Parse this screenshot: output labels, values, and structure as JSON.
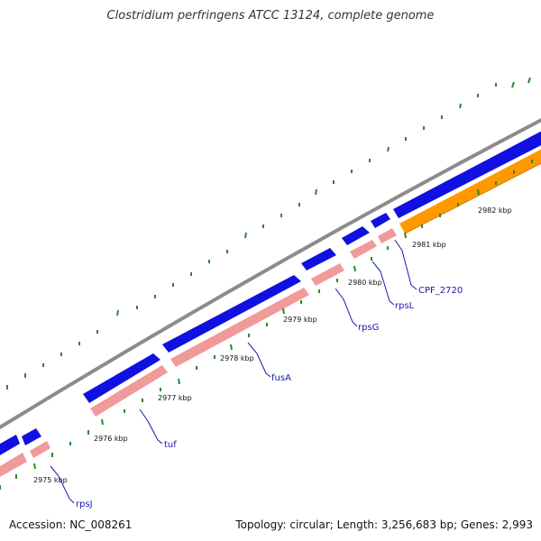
{
  "header": {
    "title": "Clostridium perfringens ATCC 13124, complete genome"
  },
  "footer": {
    "accession": "Accession: NC_008261",
    "topology": "Topology: circular; Length: 3,256,683 bp; Genes: 2,993"
  },
  "map": {
    "colors": {
      "backbone": "#8c8c8c",
      "gene_forward": "#1010e0",
      "cds": "#f09a9a",
      "cds_orange": "#ff9900",
      "tick": "#2a8a2a",
      "label": "#1a1aa8"
    },
    "ticks": [
      {
        "kbp": 2975,
        "label": "2975 kbp"
      },
      {
        "kbp": 2976,
        "label": "2976 kbp"
      },
      {
        "kbp": 2977,
        "label": "2977 kbp"
      },
      {
        "kbp": 2978,
        "label": "2978 kbp"
      },
      {
        "kbp": 2979,
        "label": "2979 kbp"
      },
      {
        "kbp": 2980,
        "label": "2980 kbp"
      },
      {
        "kbp": 2981,
        "label": "2981 kbp"
      },
      {
        "kbp": 2982,
        "label": "2982 kbp"
      }
    ],
    "genes": [
      {
        "name": "rpsJ"
      },
      {
        "name": "tuf"
      },
      {
        "name": "fusA"
      },
      {
        "name": "rpsG"
      },
      {
        "name": "rpsL"
      },
      {
        "name": "CPF_2720"
      }
    ]
  }
}
